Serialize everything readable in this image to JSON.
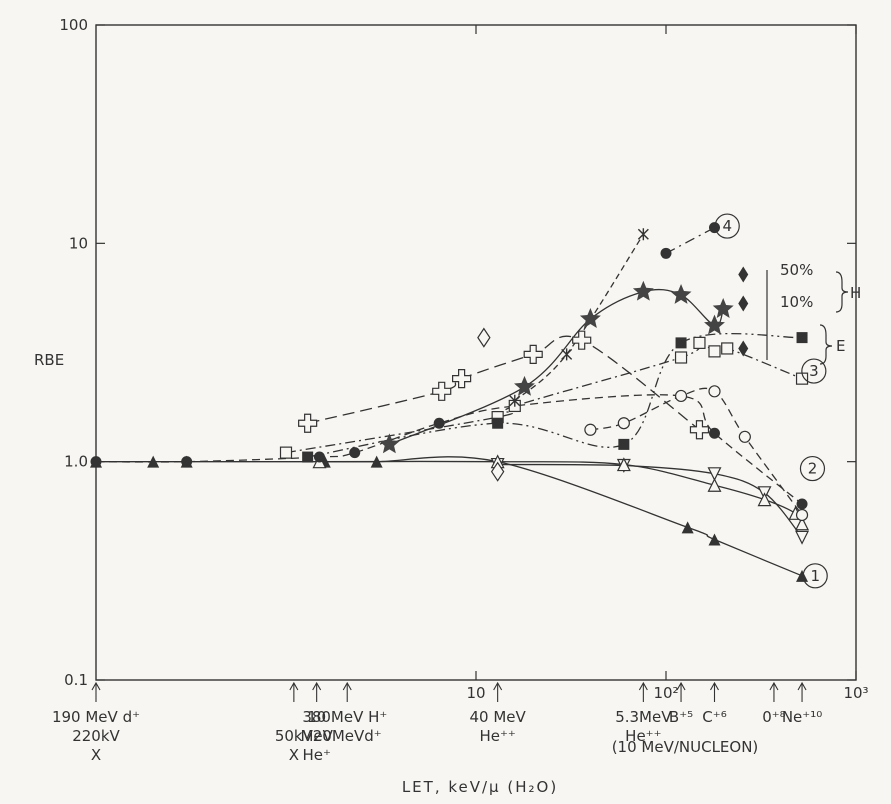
{
  "chart_data": {
    "type": "scatter",
    "title": "",
    "xlabel": "LET, keV/μ (H₂O)",
    "ylabel": "RBE",
    "x_scale": "log",
    "y_scale": "log",
    "xlim": [
      0.1,
      1000
    ],
    "ylim": [
      0.1,
      100
    ],
    "grid": false,
    "x_tick_labels": [
      {
        "x": 10,
        "label": "10"
      },
      {
        "x": 100,
        "label": "10²"
      },
      {
        "x": 1000,
        "label": "10³"
      }
    ],
    "y_tick_labels": [
      {
        "y": 0.1,
        "label": "0.1"
      },
      {
        "y": 1.0,
        "label": "1.0"
      },
      {
        "y": 10,
        "label": "10"
      },
      {
        "y": 100,
        "label": "100"
      }
    ],
    "radiation_labels": [
      {
        "x": 0.1,
        "lines": [
          "190 MeV d⁺",
          "220kV",
          "X"
        ]
      },
      {
        "x": 1.1,
        "lines": [
          "",
          "50kV",
          "X"
        ]
      },
      {
        "x": 1.45,
        "lines": [
          "380",
          "MeV",
          "He⁺"
        ]
      },
      {
        "x": 2.1,
        "lines": [
          "10 MeV H⁺",
          "20MeVd⁺"
        ]
      },
      {
        "x": 13,
        "lines": [
          "40 MeV",
          "He⁺⁺"
        ]
      },
      {
        "x": 76,
        "lines": [
          "5.3MeV",
          "He⁺⁺"
        ]
      },
      {
        "x": 120,
        "lines": [
          "B⁺⁵"
        ]
      },
      {
        "x": 180,
        "lines": [
          "C⁺⁶"
        ]
      },
      {
        "x": 370,
        "lines": [
          "0⁺⁸"
        ]
      },
      {
        "x": 520,
        "lines": [
          "Ne⁺¹⁰"
        ]
      }
    ],
    "nucleon_label": "(10 MeV/NUCLEON)",
    "curve_labels": [
      {
        "x": 210,
        "y": 12,
        "label": "4"
      },
      {
        "x": 600,
        "y": 2.6,
        "label": "3"
      },
      {
        "x": 590,
        "y": 0.93,
        "label": "2"
      },
      {
        "x": 610,
        "y": 0.3,
        "label": "1"
      }
    ],
    "bracket_labels": {
      "pct_50": "50%",
      "pct_10": "10%",
      "H": "H",
      "E": "E"
    },
    "series": [
      {
        "marker": "filled-triangle",
        "x": [
          0.1,
          0.2,
          0.3,
          1.6,
          3.0,
          13,
          130,
          180,
          520
        ],
        "y": [
          1.0,
          1.0,
          1.0,
          1.0,
          1.0,
          1.0,
          0.5,
          0.44,
          0.3
        ]
      },
      {
        "marker": "open-inverted-triangle",
        "x": [
          13,
          60,
          180,
          330,
          520
        ],
        "y": [
          0.97,
          0.96,
          0.88,
          0.72,
          0.45
        ]
      },
      {
        "marker": "open-triangle",
        "x": [
          1.5,
          13,
          60,
          180,
          330,
          480,
          520
        ],
        "y": [
          1.0,
          1.0,
          0.97,
          0.78,
          0.67,
          0.58,
          0.52
        ]
      },
      {
        "marker": "filled-circle",
        "x": [
          0.1,
          0.3,
          1.5,
          2.3,
          6.4,
          16,
          120,
          180,
          520
        ],
        "y": [
          1.0,
          1.0,
          1.05,
          1.1,
          1.5,
          1.8,
          2.0,
          1.35,
          0.64
        ]
      },
      {
        "marker": "open-circle",
        "x": [
          40,
          60,
          120,
          180,
          260,
          520
        ],
        "y": [
          1.4,
          1.5,
          2.0,
          2.1,
          1.3,
          0.57
        ]
      },
      {
        "marker": "open-square",
        "x": [
          1.0,
          13,
          16,
          120,
          150,
          180,
          210,
          520
        ],
        "y": [
          1.1,
          1.6,
          1.8,
          3.0,
          3.5,
          3.2,
          3.3,
          2.4
        ]
      },
      {
        "marker": "filled-square",
        "x": [
          1.3,
          13,
          60,
          120,
          520
        ],
        "y": [
          1.05,
          1.5,
          1.2,
          3.5,
          3.7
        ]
      },
      {
        "marker": "filled-circle-upper",
        "x": [
          100,
          180
        ],
        "y": [
          9.0,
          11.8
        ]
      },
      {
        "marker": "star",
        "x": [
          3.5,
          18,
          40,
          76,
          120,
          180,
          200
        ],
        "y": [
          1.2,
          2.2,
          4.5,
          6.0,
          5.8,
          4.2,
          5.0
        ]
      },
      {
        "marker": "asterisk",
        "x": [
          16,
          30,
          76
        ],
        "y": [
          1.9,
          3.1,
          11.0
        ]
      },
      {
        "marker": "open-cross",
        "x": [
          1.3,
          6.6,
          8.4,
          20,
          36,
          150
        ],
        "y": [
          1.5,
          2.1,
          2.4,
          3.1,
          3.6,
          1.4
        ]
      },
      {
        "marker": "open-diamond",
        "x": [
          11,
          13
        ],
        "y": [
          3.7,
          0.9
        ]
      },
      {
        "marker": "filled-diamond",
        "x": [
          255,
          255,
          255
        ],
        "y": [
          7.2,
          5.3,
          3.3
        ]
      }
    ]
  }
}
